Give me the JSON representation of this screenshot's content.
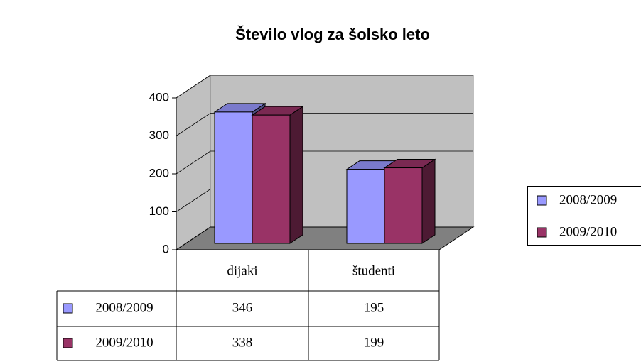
{
  "chart_data": {
    "type": "bar3d",
    "title": "Število vlog za šolsko leto",
    "categories": [
      "dijaki",
      "študenti"
    ],
    "series": [
      {
        "name": "2008/2009",
        "color": "#9999ff",
        "values": [
          346,
          195
        ]
      },
      {
        "name": "2009/2010",
        "color": "#993366",
        "values": [
          338,
          199
        ]
      }
    ],
    "ylim": [
      0,
      400
    ],
    "yticks": [
      0,
      100,
      200,
      300,
      400
    ],
    "grid": true,
    "legend": "right",
    "data_table": true
  }
}
